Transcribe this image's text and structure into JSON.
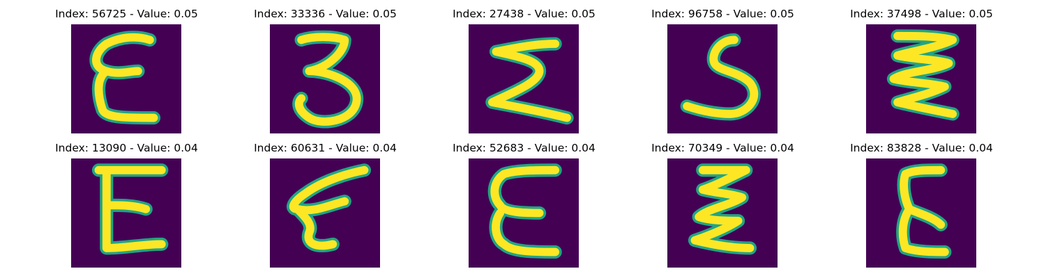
{
  "colors": {
    "background": "#440154",
    "stroke_outer": "#21a585",
    "stroke_inner": "#fde725"
  },
  "panels": [
    {
      "title": "Index: 56725 - Value: 0.05",
      "glyph": "epsilon-loopy"
    },
    {
      "title": "Index: 33336 - Value: 0.05",
      "glyph": "three"
    },
    {
      "title": "Index: 27438 - Value: 0.05",
      "glyph": "sigma-zigzag"
    },
    {
      "title": "Index: 96758 - Value: 0.05",
      "glyph": "five-curve"
    },
    {
      "title": "Index: 37498 - Value: 0.05",
      "glyph": "triple-zigzag"
    },
    {
      "title": "Index: 13090 - Value: 0.04",
      "glyph": "block-e"
    },
    {
      "title": "Index: 60631 - Value: 0.04",
      "glyph": "slanted-e"
    },
    {
      "title": "Index: 52683 - Value: 0.04",
      "glyph": "rounded-e"
    },
    {
      "title": "Index: 70349 - Value: 0.04",
      "glyph": "double-z"
    },
    {
      "title": "Index: 83828 - Value: 0.04",
      "glyph": "tall-e"
    }
  ]
}
